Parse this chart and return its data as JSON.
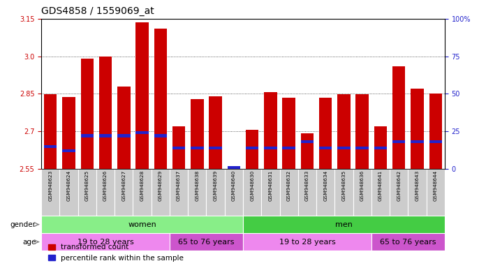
{
  "title": "GDS4858 / 1559069_at",
  "samples": [
    "GSM948623",
    "GSM948624",
    "GSM948625",
    "GSM948626",
    "GSM948627",
    "GSM948628",
    "GSM948629",
    "GSM948637",
    "GSM948638",
    "GSM948639",
    "GSM948640",
    "GSM948630",
    "GSM948631",
    "GSM948632",
    "GSM948633",
    "GSM948634",
    "GSM948635",
    "GSM948636",
    "GSM948641",
    "GSM948642",
    "GSM948643",
    "GSM948644"
  ],
  "transformed_count": [
    2.848,
    2.838,
    2.99,
    3.0,
    2.878,
    3.135,
    3.11,
    2.72,
    2.83,
    2.84,
    2.557,
    2.707,
    2.856,
    2.835,
    2.693,
    2.835,
    2.848,
    2.848,
    2.72,
    2.96,
    2.87,
    2.85
  ],
  "percentile_rank": [
    15,
    12,
    22,
    22,
    22,
    24,
    22,
    14,
    14,
    14,
    1,
    14,
    14,
    14,
    18,
    14,
    14,
    14,
    14,
    18,
    18,
    18
  ],
  "ylim_left": [
    2.55,
    3.15
  ],
  "ylim_right": [
    0,
    100
  ],
  "yticks_left": [
    2.55,
    2.7,
    2.85,
    3.0,
    3.15
  ],
  "yticks_right": [
    0,
    25,
    50,
    75,
    100
  ],
  "bar_color_red": "#cc0000",
  "bar_color_blue": "#2222cc",
  "bar_width": 0.7,
  "gender_groups": [
    {
      "label": "women",
      "start": 0,
      "end": 11,
      "color": "#88ee88"
    },
    {
      "label": "men",
      "start": 11,
      "end": 22,
      "color": "#44cc44"
    }
  ],
  "age_groups": [
    {
      "label": "19 to 28 years",
      "start": 0,
      "end": 7,
      "color": "#ee88ee"
    },
    {
      "label": "65 to 76 years",
      "start": 7,
      "end": 11,
      "color": "#cc55cc"
    },
    {
      "label": "19 to 28 years",
      "start": 11,
      "end": 18,
      "color": "#ee88ee"
    },
    {
      "label": "65 to 76 years",
      "start": 18,
      "end": 22,
      "color": "#cc55cc"
    }
  ],
  "legend_red_label": "transformed count",
  "legend_blue_label": "percentile rank within the sample",
  "background_color": "#ffffff",
  "tick_label_color_left": "#cc0000",
  "tick_label_color_right": "#2222cc",
  "title_fontsize": 10,
  "tick_fontsize": 7,
  "sample_fontsize": 5.2,
  "xticklabel_bg": "#cccccc",
  "grid_linestyle": ":",
  "grid_color": "#333333",
  "grid_linewidth": 0.6,
  "spine_color": "#000000"
}
